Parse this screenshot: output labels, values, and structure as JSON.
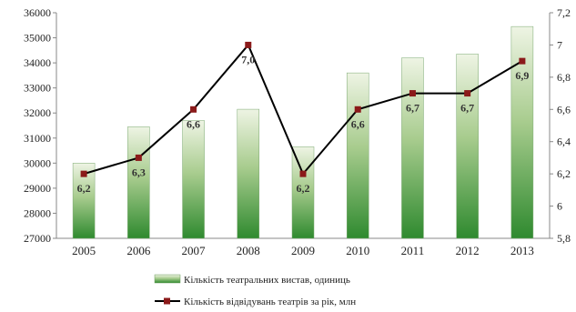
{
  "chart_data": {
    "type": "bar+line",
    "categories": [
      "2005",
      "2006",
      "2007",
      "2008",
      "2009",
      "2010",
      "2011",
      "2012",
      "2013"
    ],
    "series": [
      {
        "name": "Кількість театральних вистав, одиниць",
        "type": "bar",
        "axis": "left",
        "values": [
          30000,
          31450,
          31700,
          32150,
          30650,
          33600,
          34200,
          34350,
          35450
        ]
      },
      {
        "name": "Кількість відвідувань театрів за рік, млн",
        "type": "line",
        "axis": "right",
        "values": [
          6.2,
          6.3,
          6.6,
          7.0,
          6.2,
          6.6,
          6.7,
          6.7,
          6.9
        ],
        "data_labels": [
          "6,2",
          "6,3",
          "6,6",
          "7,0",
          "6,2",
          "6,6",
          "6,7",
          "6,7",
          "6,9"
        ]
      }
    ],
    "y_left": {
      "lim": [
        27000,
        36000
      ],
      "ticks": [
        "27000",
        "28000",
        "29000",
        "30000",
        "31000",
        "32000",
        "33000",
        "34000",
        "35000",
        "36000"
      ]
    },
    "y_right": {
      "lim": [
        5.8,
        7.2
      ],
      "ticks": [
        "5,8",
        "6",
        "6,2",
        "6,4",
        "6,6",
        "6,8",
        "7",
        "7,2"
      ]
    },
    "grid": false,
    "legend_position": "bottom",
    "colors": {
      "bar_top": "#eef4e4",
      "bar_bottom": "#2f8a2f",
      "line": "#000000",
      "marker": "#8b1a1a"
    }
  }
}
